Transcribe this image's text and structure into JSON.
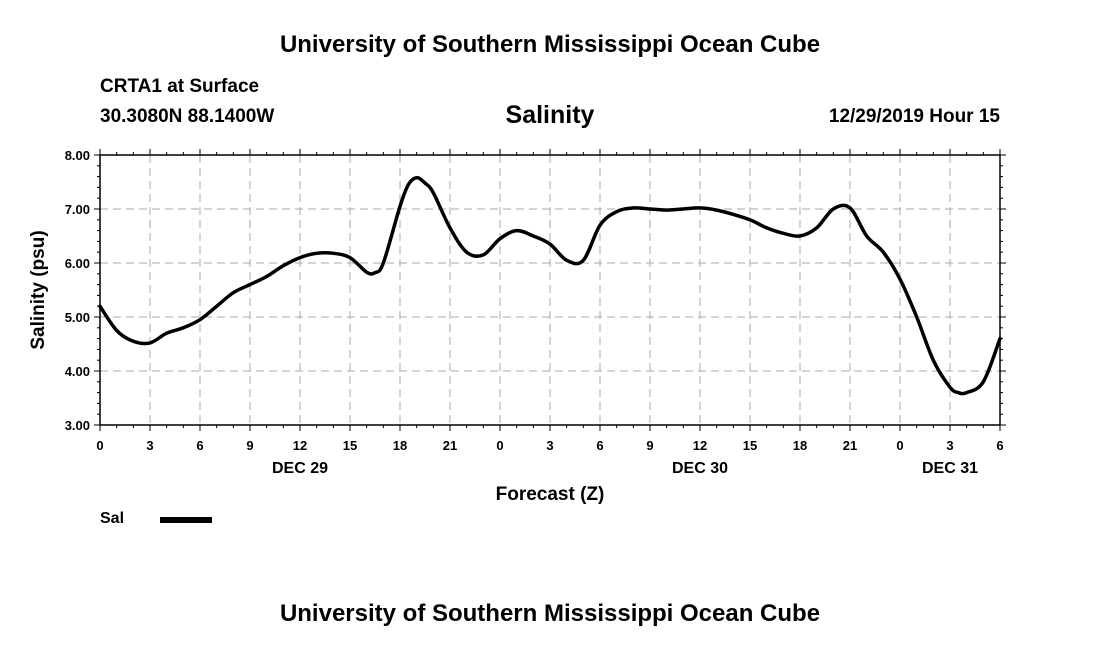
{
  "header": {
    "org_title": "University of Southern Mississippi Ocean Cube",
    "station": "CRTA1 at Surface",
    "coords": "30.3080N 88.1400W",
    "datetime": "12/29/2019 Hour 15"
  },
  "footer": {
    "org_title": "University of Southern Mississippi Ocean Cube"
  },
  "chart_data": {
    "type": "line",
    "title": "Salinity",
    "xlabel": "Forecast (Z)",
    "ylabel": "Salinity (psu)",
    "ylim": [
      3.0,
      8.0
    ],
    "xlim": [
      0,
      54
    ],
    "yticks": [
      "3.00",
      "4.00",
      "5.00",
      "6.00",
      "7.00",
      "8.00"
    ],
    "xtick_labels": [
      "0",
      "3",
      "6",
      "9",
      "12",
      "15",
      "18",
      "21",
      "0",
      "3",
      "6",
      "9",
      "12",
      "15",
      "18",
      "21",
      "0",
      "3",
      "6"
    ],
    "date_labels": [
      {
        "label": "DEC 29",
        "hour": 12
      },
      {
        "label": "DEC 30",
        "hour": 36
      },
      {
        "label": "DEC 31",
        "hour": 51
      }
    ],
    "grid": true,
    "legend_position": "bottom-left",
    "series": [
      {
        "name": "Sal",
        "color": "#000000",
        "x": [
          0,
          1,
          2,
          3,
          4,
          5,
          6,
          7,
          8,
          9,
          10,
          11,
          12,
          13,
          14,
          15,
          16,
          16.5,
          17,
          18,
          18.5,
          19,
          19.5,
          20,
          21,
          22,
          23,
          24,
          25,
          26,
          27,
          28,
          29,
          30,
          31,
          32,
          33,
          34,
          35,
          36,
          37,
          38,
          39,
          40,
          41,
          42,
          43,
          44,
          45,
          46,
          47,
          48,
          49,
          50,
          51,
          51.5,
          52,
          53,
          54
        ],
        "values": [
          5.2,
          4.75,
          4.55,
          4.52,
          4.7,
          4.8,
          4.95,
          5.2,
          5.45,
          5.6,
          5.75,
          5.95,
          6.1,
          6.18,
          6.18,
          6.1,
          5.83,
          5.82,
          6.0,
          7.05,
          7.45,
          7.58,
          7.48,
          7.3,
          6.65,
          6.2,
          6.15,
          6.45,
          6.6,
          6.5,
          6.35,
          6.05,
          6.05,
          6.7,
          6.95,
          7.02,
          7.0,
          6.98,
          7.0,
          7.02,
          6.98,
          6.9,
          6.8,
          6.65,
          6.55,
          6.5,
          6.65,
          7.0,
          7.02,
          6.5,
          6.2,
          5.7,
          5.0,
          4.2,
          3.7,
          3.6,
          3.6,
          3.8,
          4.6
        ]
      }
    ]
  }
}
